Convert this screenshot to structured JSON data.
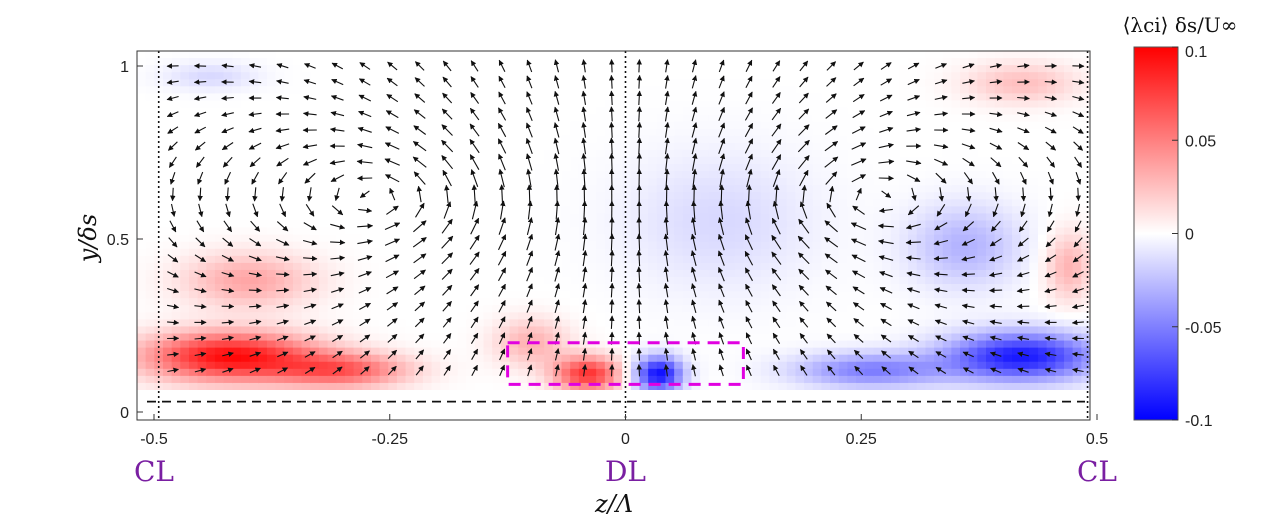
{
  "chart_data": {
    "type": "heatmap",
    "xlabel": "z/Λ",
    "ylabel": "y/δs",
    "colorbar_label": "⟨λci⟩ δs/U∞",
    "xlim": [
      -0.5,
      0.5
    ],
    "ylim": [
      0,
      1.05
    ],
    "x_ticks": [
      -0.5,
      -0.25,
      0,
      0.25,
      0.5
    ],
    "x_tick_labels": [
      "-0.5",
      "-0.25",
      "0",
      "0.25",
      "0.5"
    ],
    "y_ticks": [
      0,
      0.5,
      1
    ],
    "y_tick_labels": [
      "0",
      "0.5",
      "1"
    ],
    "clim": [
      -0.1,
      0.1
    ],
    "colorbar_ticks": [
      0.1,
      0.05,
      0,
      -0.05,
      -0.1
    ],
    "colorbar_tick_labels": [
      "0.1",
      "0.05",
      "0",
      "-0.05",
      "-0.1"
    ],
    "colormap": {
      "low": "#0000ff",
      "mid": "#ffffff",
      "high": "#ff0000"
    },
    "region_labels": [
      {
        "text": "CL",
        "z": -0.5
      },
      {
        "text": "DL",
        "z": 0
      },
      {
        "text": "CL",
        "z": 0.5
      }
    ],
    "reference_lines": [
      {
        "orientation": "vertical",
        "z": -0.495,
        "style": "dotted"
      },
      {
        "orientation": "vertical",
        "z": 0.0,
        "style": "dotted"
      },
      {
        "orientation": "vertical",
        "z": 0.49,
        "style": "dotted"
      },
      {
        "orientation": "horizontal",
        "y": 0.03,
        "style": "dashed"
      }
    ],
    "highlight_box": {
      "z": [
        -0.125,
        0.125
      ],
      "y": [
        0.08,
        0.2
      ],
      "color": "#e100e1",
      "style": "dashed"
    },
    "vortex_blobs": [
      {
        "z": -0.42,
        "y": 0.16,
        "value": 0.095,
        "sz": 0.09,
        "sy": 0.07
      },
      {
        "z": -0.3,
        "y": 0.12,
        "value": 0.06,
        "sz": 0.07,
        "sy": 0.05
      },
      {
        "z": -0.4,
        "y": 0.38,
        "value": 0.035,
        "sz": 0.07,
        "sy": 0.08
      },
      {
        "z": -0.04,
        "y": 0.11,
        "value": 0.08,
        "sz": 0.035,
        "sy": 0.05
      },
      {
        "z": -0.1,
        "y": 0.2,
        "value": 0.03,
        "sz": 0.04,
        "sy": 0.07
      },
      {
        "z": 0.035,
        "y": 0.11,
        "value": -0.095,
        "sz": 0.025,
        "sy": 0.05
      },
      {
        "z": 0.42,
        "y": 0.16,
        "value": -0.09,
        "sz": 0.08,
        "sy": 0.07
      },
      {
        "z": 0.26,
        "y": 0.12,
        "value": -0.05,
        "sz": 0.08,
        "sy": 0.05
      },
      {
        "z": 0.36,
        "y": 0.48,
        "value": -0.03,
        "sz": 0.06,
        "sy": 0.12
      },
      {
        "z": 0.42,
        "y": 0.95,
        "value": 0.025,
        "sz": 0.06,
        "sy": 0.06
      },
      {
        "z": -0.44,
        "y": 0.97,
        "value": -0.015,
        "sz": 0.05,
        "sy": 0.04
      },
      {
        "z": 0.1,
        "y": 0.55,
        "value": -0.015,
        "sz": 0.1,
        "sy": 0.2
      },
      {
        "z": 0.47,
        "y": 0.42,
        "value": 0.03,
        "sz": 0.025,
        "sy": 0.1
      }
    ],
    "vortex_centers": [
      {
        "z": -0.25,
        "y": 0.62
      },
      {
        "z": 0.25,
        "y": 0.62
      }
    ]
  }
}
